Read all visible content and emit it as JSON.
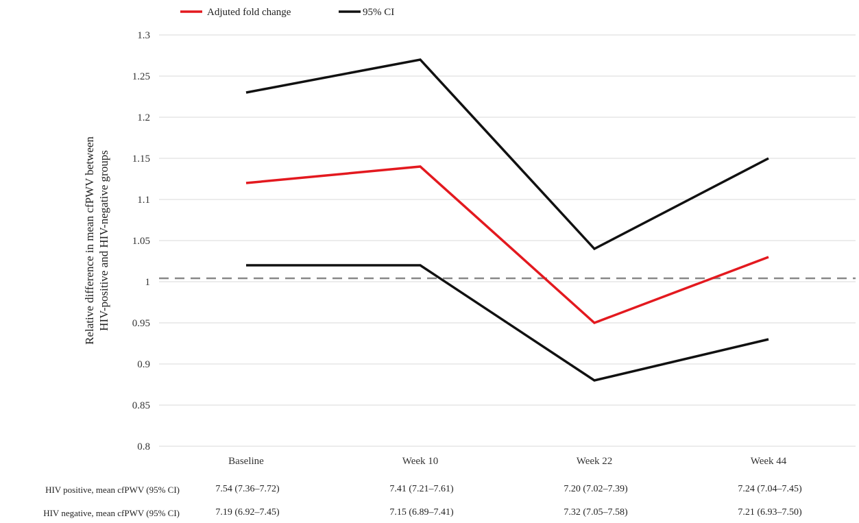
{
  "legend": {
    "fold_change": "Adjuted fold change",
    "ci": "95% CI"
  },
  "colors": {
    "fold_change": "#e3191f",
    "ci": "#111111",
    "reference": "#888888",
    "grid": "#d9d9d9"
  },
  "chart_data": {
    "type": "line",
    "categories": [
      "Baseline",
      "Week 10",
      "Week 22",
      "Week 44"
    ],
    "ylabel_line1": "Relative difference in mean cfPWV between",
    "ylabel_line2": "HIV-positive and HIV-negative groups",
    "ylim": [
      0.8,
      1.3
    ],
    "yticks": [
      0.8,
      0.85,
      0.9,
      0.95,
      1,
      1.05,
      1.1,
      1.15,
      1.2,
      1.25,
      1.3
    ],
    "ytick_labels": [
      "0.8",
      "0.85",
      "0.9",
      "0.95",
      "1",
      "1.05",
      "1.1",
      "1.15",
      "1.2",
      "1.25",
      "1.3"
    ],
    "reference_line": 1.0,
    "grid": true,
    "legend_position": "top-left",
    "series": [
      {
        "name": "Adjuted fold change",
        "values": [
          1.12,
          1.14,
          0.95,
          1.03
        ]
      },
      {
        "name": "95% CI",
        "values": [
          1.23,
          1.27,
          1.04,
          1.15
        ]
      },
      {
        "name": "95% CI",
        "values": [
          1.02,
          1.02,
          0.88,
          0.93
        ]
      }
    ]
  },
  "table": {
    "rows": [
      {
        "label": "HIV positive, mean cfPWV (95% CI)",
        "cells": [
          "7.54 (7.36–7.72)",
          "7.41 (7.21–7.61)",
          "7.20 (7.02–7.39)",
          "7.24 (7.04–7.45)"
        ]
      },
      {
        "label": "HIV negative, mean cfPWV (95% CI)",
        "cells": [
          "7.19 (6.92–7.45)",
          "7.15 (6.89–7.41)",
          "7.32 (7.05–7.58)",
          "7.21 (6.93–7.50)"
        ]
      }
    ]
  }
}
